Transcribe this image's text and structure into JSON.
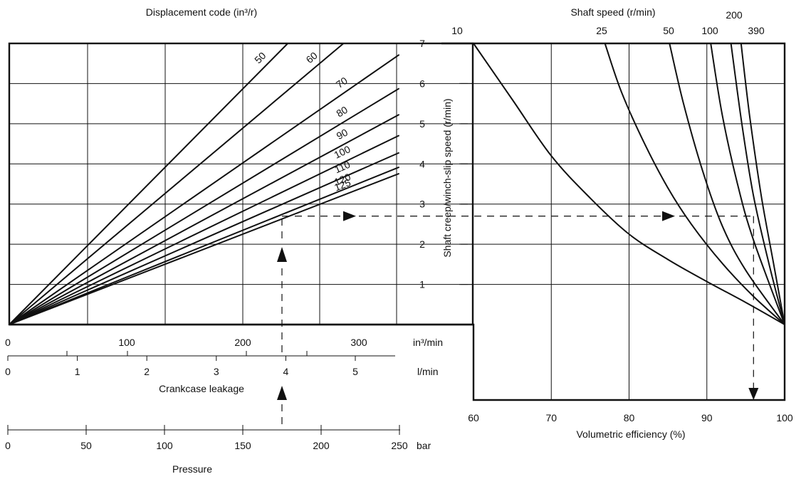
{
  "chart_data": [
    {
      "type": "line",
      "chart_id": "leakage-chart",
      "title": "Displacement code (in³/r)",
      "ylabel": "Shaft creep/winch-slip speed (r/min)",
      "y_ticks": [
        "1",
        "2",
        "3",
        "4",
        "5",
        "6",
        "7"
      ],
      "ylim": [
        0,
        7
      ],
      "x_axes": [
        {
          "key": "in3",
          "unit": "in³/min",
          "ticks": [
            "0",
            "100",
            "200",
            "300"
          ],
          "range": [
            0,
            340
          ]
        },
        {
          "key": "lmin",
          "unit": "l/min",
          "label": "Crankcase leakage",
          "ticks": [
            "0",
            "1",
            "2",
            "3",
            "4",
            "5"
          ],
          "range": [
            0,
            5.57
          ]
        },
        {
          "key": "bar",
          "unit": "bar",
          "label": "Pressure",
          "ticks": [
            "0",
            "50",
            "100",
            "150",
            "200",
            "250"
          ],
          "range": [
            0,
            250
          ]
        }
      ],
      "series": [
        {
          "name": "50",
          "x_end": 240,
          "y_end": 7.0
        },
        {
          "name": "60",
          "x_end": 288,
          "y_end": 7.0
        },
        {
          "name": "70",
          "x_end": 336,
          "y_end": 6.72
        },
        {
          "name": "80",
          "x_end": 336,
          "y_end": 5.88
        },
        {
          "name": "90",
          "x_end": 336,
          "y_end": 5.23
        },
        {
          "name": "100",
          "x_end": 336,
          "y_end": 4.71
        },
        {
          "name": "110",
          "x_end": 336,
          "y_end": 4.28
        },
        {
          "name": "120",
          "x_end": 336,
          "y_end": 3.92
        },
        {
          "name": "125",
          "x_end": 336,
          "y_end": 3.76
        }
      ],
      "grid": true
    },
    {
      "type": "line",
      "chart_id": "efficiency-chart",
      "title": "Shaft speed (r/min)",
      "xlabel": "Volumetric efficiency (%)",
      "x_ticks": [
        "60",
        "70",
        "80",
        "90",
        "100"
      ],
      "xlim": [
        60,
        100
      ],
      "ylim": [
        0,
        7
      ],
      "y_ticks": [
        "1",
        "2",
        "3",
        "4",
        "5",
        "6",
        "7"
      ],
      "series": [
        {
          "name": "10",
          "points": [
            [
              60,
              7.0
            ],
            [
              65,
              5.6
            ],
            [
              70,
              4.2
            ],
            [
              75,
              3.15
            ],
            [
              80,
              2.25
            ],
            [
              85,
              1.62
            ],
            [
              90,
              1.07
            ],
            [
              95,
              0.55
            ],
            [
              100,
              0
            ]
          ]
        },
        {
          "name": "25",
          "points": [
            [
              76.9,
              7.0
            ],
            [
              79,
              5.8
            ],
            [
              82,
              4.5
            ],
            [
              85,
              3.4
            ],
            [
              88,
              2.5
            ],
            [
              92,
              1.52
            ],
            [
              96,
              0.7
            ],
            [
              100,
              0
            ]
          ]
        },
        {
          "name": "50",
          "points": [
            [
              85.2,
              7.0
            ],
            [
              87,
              5.5
            ],
            [
              89.5,
              3.8
            ],
            [
              92,
              2.45
            ],
            [
              95,
              1.35
            ],
            [
              100,
              0
            ]
          ]
        },
        {
          "name": "100",
          "points": [
            [
              90.5,
              7.0
            ],
            [
              92,
              5.2
            ],
            [
              94,
              3.45
            ],
            [
              96,
              2.1
            ],
            [
              100,
              0
            ]
          ]
        },
        {
          "name": "200",
          "points": [
            [
              93.1,
              7.0
            ],
            [
              94.5,
              5.0
            ],
            [
              96,
              3.2
            ],
            [
              98,
              1.5
            ],
            [
              100,
              0
            ]
          ]
        },
        {
          "name": "390",
          "points": [
            [
              94.4,
              7.0
            ],
            [
              95.5,
              5.2
            ],
            [
              97,
              3.2
            ],
            [
              98.5,
              1.6
            ],
            [
              100,
              0
            ]
          ]
        }
      ],
      "grid": true
    }
  ],
  "example_path": {
    "pressure_bar": 175,
    "leakage_in3_per_min": 232,
    "creep_speed_r_per_min": 2.7,
    "efficiency_percent": 96
  }
}
